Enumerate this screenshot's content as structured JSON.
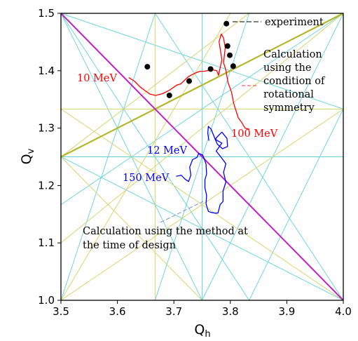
{
  "chart_data": {
    "type": "scatter",
    "title": "",
    "xlabel": "Q",
    "xlabel_sub": "h",
    "ylabel": "Q",
    "ylabel_sub": "v",
    "xlim": [
      3.5,
      4.0
    ],
    "ylim": [
      1.0,
      1.5
    ],
    "x_ticks": [
      "3.5",
      "3.6",
      "3.7",
      "3.8",
      "3.9",
      "4.0"
    ],
    "y_ticks": [
      "1.0",
      "1.1",
      "1.2",
      "1.3",
      "1.4",
      "1.5"
    ],
    "grid": false,
    "resonance_lines": {
      "cyan": [
        [
          [
            3.5,
            1.5
          ],
          [
            3.75,
            1.0
          ]
        ],
        [
          [
            3.5,
            1.5
          ],
          [
            3.8333,
            1.0
          ]
        ],
        [
          [
            3.5,
            1.5
          ],
          [
            4.0,
            1.3333
          ]
        ],
        [
          [
            3.5,
            1.0
          ],
          [
            3.6667,
            1.5
          ]
        ],
        [
          [
            3.5,
            1.1667
          ],
          [
            4.0,
            1.5
          ]
        ],
        [
          [
            3.5,
            1.25
          ],
          [
            4.0,
            1.0
          ]
        ],
        [
          [
            3.5,
            1.25
          ],
          [
            4.0,
            1.25
          ]
        ],
        [
          [
            3.6667,
            1.0
          ],
          [
            3.8333,
            1.5
          ]
        ],
        [
          [
            3.75,
            1.0
          ],
          [
            3.75,
            1.5
          ]
        ],
        [
          [
            3.75,
            1.0
          ],
          [
            4.0,
            1.5
          ]
        ],
        [
          [
            3.8333,
            1.0
          ],
          [
            4.0,
            1.3333
          ]
        ],
        [
          [
            3.6667,
            1.5
          ],
          [
            4.0,
            1.0
          ]
        ]
      ],
      "yellow": [
        [
          [
            3.5,
            1.0
          ],
          [
            4.0,
            1.3333
          ]
        ],
        [
          [
            3.5,
            1.3333
          ],
          [
            4.0,
            1.0
          ]
        ],
        [
          [
            3.5,
            1.3333
          ],
          [
            4.0,
            1.3333
          ]
        ],
        [
          [
            3.6667,
            1.0
          ],
          [
            3.6667,
            1.5
          ]
        ],
        [
          [
            3.5,
            1.0
          ],
          [
            3.8,
            1.5
          ]
        ],
        [
          [
            3.5,
            1.1
          ],
          [
            4.0,
            1.5
          ]
        ],
        [
          [
            3.5,
            1.25
          ],
          [
            3.8333,
            1.5
          ]
        ],
        [
          [
            3.5,
            1.25
          ],
          [
            3.75,
            1.0
          ]
        ]
      ],
      "olive": [
        [
          [
            3.5,
            1.25
          ],
          [
            4.0,
            1.5
          ]
        ]
      ],
      "magenta": [
        [
          [
            3.5,
            1.5
          ],
          [
            4.0,
            1.0
          ]
        ]
      ]
    },
    "series": [
      {
        "name": "experiment",
        "color": "#000000",
        "marker": "dot",
        "points": [
          [
            3.653,
            1.407
          ],
          [
            3.692,
            1.357
          ],
          [
            3.727,
            1.382
          ],
          [
            3.765,
            1.403
          ],
          [
            3.793,
            1.482
          ],
          [
            3.795,
            1.443
          ],
          [
            3.799,
            1.427
          ],
          [
            3.805,
            1.408
          ]
        ]
      },
      {
        "name": "calculation_rotational_symmetry",
        "color": "#ff0000",
        "points": [
          [
            3.62,
            1.388
          ],
          [
            3.63,
            1.382
          ],
          [
            3.64,
            1.372
          ],
          [
            3.648,
            1.366
          ],
          [
            3.658,
            1.359
          ],
          [
            3.668,
            1.357
          ],
          [
            3.68,
            1.36
          ],
          [
            3.692,
            1.366
          ],
          [
            3.705,
            1.375
          ],
          [
            3.712,
            1.377
          ],
          [
            3.726,
            1.39
          ],
          [
            3.738,
            1.396
          ],
          [
            3.746,
            1.399
          ],
          [
            3.754,
            1.399
          ],
          [
            3.767,
            1.402
          ],
          [
            3.776,
            1.4
          ],
          [
            3.779,
            1.392
          ],
          [
            3.785,
            1.419
          ],
          [
            3.78,
            1.451
          ],
          [
            3.784,
            1.464
          ],
          [
            3.788,
            1.457
          ],
          [
            3.791,
            1.44
          ],
          [
            3.788,
            1.414
          ],
          [
            3.792,
            1.401
          ],
          [
            3.796,
            1.379
          ],
          [
            3.802,
            1.363
          ],
          [
            3.806,
            1.343
          ],
          [
            3.814,
            1.318
          ],
          [
            3.82,
            1.31
          ],
          [
            3.826,
            1.3
          ],
          [
            3.834,
            1.298
          ]
        ]
      },
      {
        "name": "calculation_design_method",
        "color": "#0000ff",
        "points": [
          [
            3.704,
            1.216
          ],
          [
            3.713,
            1.218
          ],
          [
            3.72,
            1.211
          ],
          [
            3.726,
            1.207
          ],
          [
            3.73,
            1.218
          ],
          [
            3.728,
            1.232
          ],
          [
            3.733,
            1.245
          ],
          [
            3.741,
            1.249
          ],
          [
            3.744,
            1.256
          ],
          [
            3.751,
            1.253
          ],
          [
            3.754,
            1.246
          ],
          [
            3.757,
            1.237
          ],
          [
            3.758,
            1.22
          ],
          [
            3.755,
            1.21
          ],
          [
            3.755,
            1.196
          ],
          [
            3.758,
            1.183
          ],
          [
            3.757,
            1.168
          ],
          [
            3.761,
            1.155
          ],
          [
            3.766,
            1.153
          ],
          [
            3.773,
            1.152
          ],
          [
            3.778,
            1.152
          ],
          [
            3.782,
            1.167
          ],
          [
            3.787,
            1.172
          ],
          [
            3.787,
            1.19
          ],
          [
            3.792,
            1.206
          ],
          [
            3.788,
            1.223
          ],
          [
            3.792,
            1.238
          ],
          [
            3.783,
            1.25
          ],
          [
            3.775,
            1.26
          ],
          [
            3.785,
            1.274
          ],
          [
            3.774,
            1.28
          ],
          [
            3.775,
            1.283
          ],
          [
            3.785,
            1.293
          ],
          [
            3.794,
            1.282
          ],
          [
            3.795,
            1.268
          ],
          [
            3.786,
            1.264
          ],
          [
            3.777,
            1.272
          ],
          [
            3.773,
            1.281
          ],
          [
            3.766,
            1.298
          ],
          [
            3.761,
            1.303
          ],
          [
            3.76,
            1.291
          ],
          [
            3.762,
            1.278
          ]
        ]
      }
    ],
    "annotations": {
      "experiment": "experiment",
      "calc_rot_line1": "Calculation",
      "calc_rot_line2": "using the",
      "calc_rot_line3": "condition of",
      "calc_rot_line4": "rotational",
      "calc_rot_line5": "symmetry",
      "calc_design_line1": "Calculation using the method at",
      "calc_design_line2": "the time of design",
      "mev_10": "10 MeV",
      "mev_100": "100 MeV",
      "mev_12": "12 MeV",
      "mev_150": "150 MeV"
    },
    "colors": {
      "cyan": "#5fd3d8",
      "yellow": "#d7d56e",
      "olive": "#b5b52a",
      "magenta": "#c21fc2",
      "red": "#ff0000",
      "blue": "#0000ff",
      "design_dash": "#7a8fc8"
    }
  }
}
